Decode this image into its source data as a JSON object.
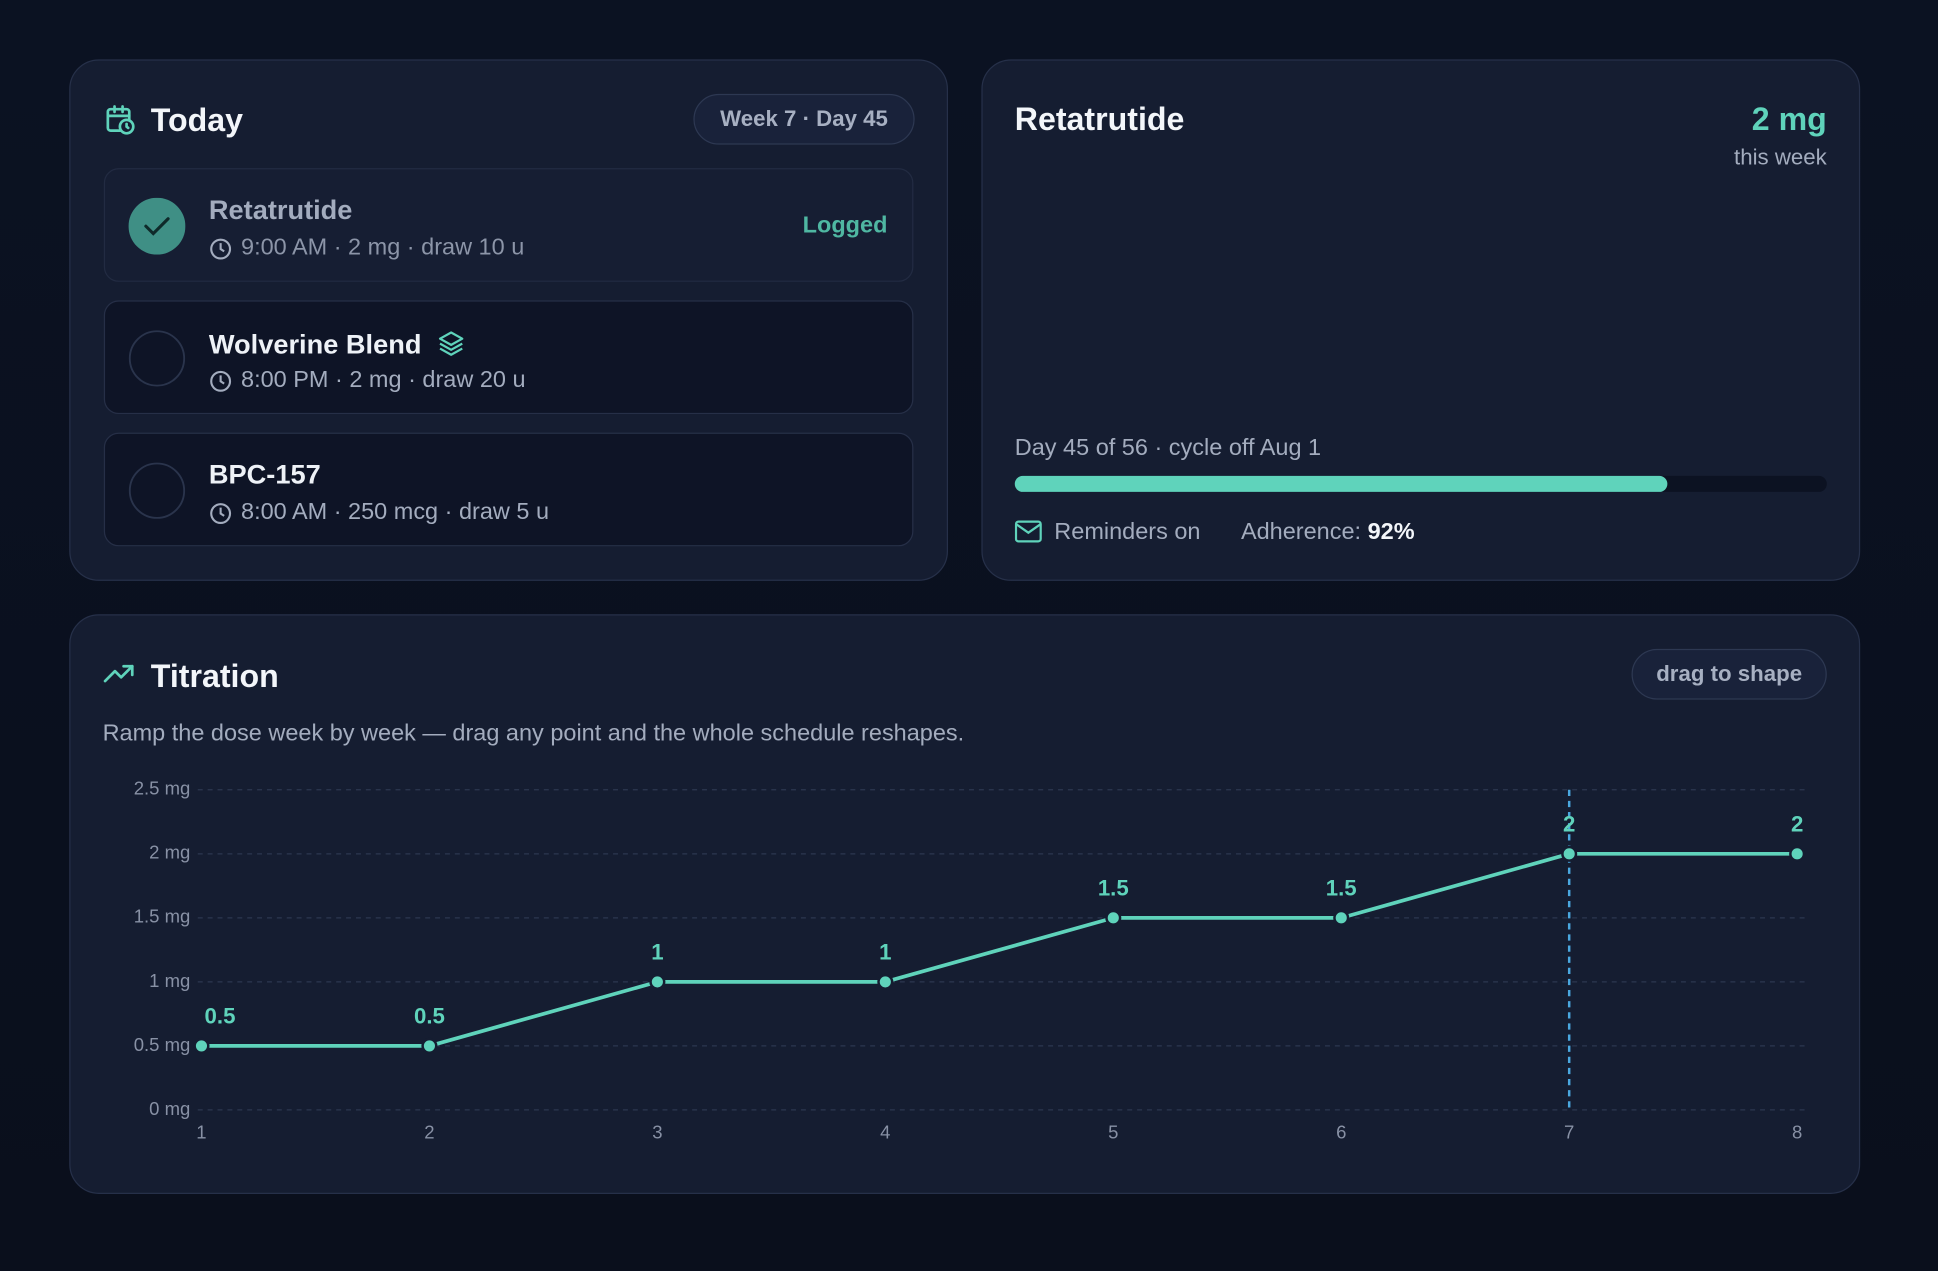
{
  "today": {
    "title": "Today",
    "badge": "Week 7 · Day 45",
    "doses": [
      {
        "name": "Retatrutide",
        "details": "9:00 AM · 2 mg · draw 10 u",
        "status": "Logged"
      },
      {
        "name": "Wolverine Blend",
        "details": "8:00 PM · 2 mg · draw 20 u"
      },
      {
        "name": "BPC-157",
        "details": "8:00 AM · 250 mcg · draw 5 u"
      }
    ]
  },
  "summary": {
    "title": "Retatrutide",
    "dose": "2 mg",
    "dose_caption": "this week",
    "cycle_label": "Day 45 of 56 · cycle off Aug 1",
    "cycle_day": 45,
    "cycle_length": 56,
    "reminders": "Reminders on",
    "adherence_label": "Adherence:",
    "adherence_value": "92%"
  },
  "titration_badge": "drag to shape",
  "chart_data": {
    "type": "line",
    "title": "Titration",
    "subtitle": "Ramp the dose week by week — drag any point and the whole schedule reshapes.",
    "x": [
      1,
      2,
      3,
      4,
      5,
      6,
      7,
      8
    ],
    "values": [
      0.5,
      0.5,
      1,
      1,
      1.5,
      1.5,
      2,
      2
    ],
    "color": "#5fd3bb",
    "highlight_x": 7,
    "xlim": [
      1,
      8
    ],
    "xticks": [
      1,
      2,
      3,
      4,
      5,
      6,
      7,
      8
    ],
    "ylim": [
      0,
      2.5
    ],
    "yticks": [
      {
        "value": 0,
        "label": "0 mg"
      },
      {
        "value": 0.5,
        "label": "0.5 mg"
      },
      {
        "value": 1,
        "label": "1 mg"
      },
      {
        "value": 1.5,
        "label": "1.5 mg"
      },
      {
        "value": 2,
        "label": "2 mg"
      },
      {
        "value": 2.5,
        "label": "2.5 mg"
      }
    ],
    "grid": true
  }
}
